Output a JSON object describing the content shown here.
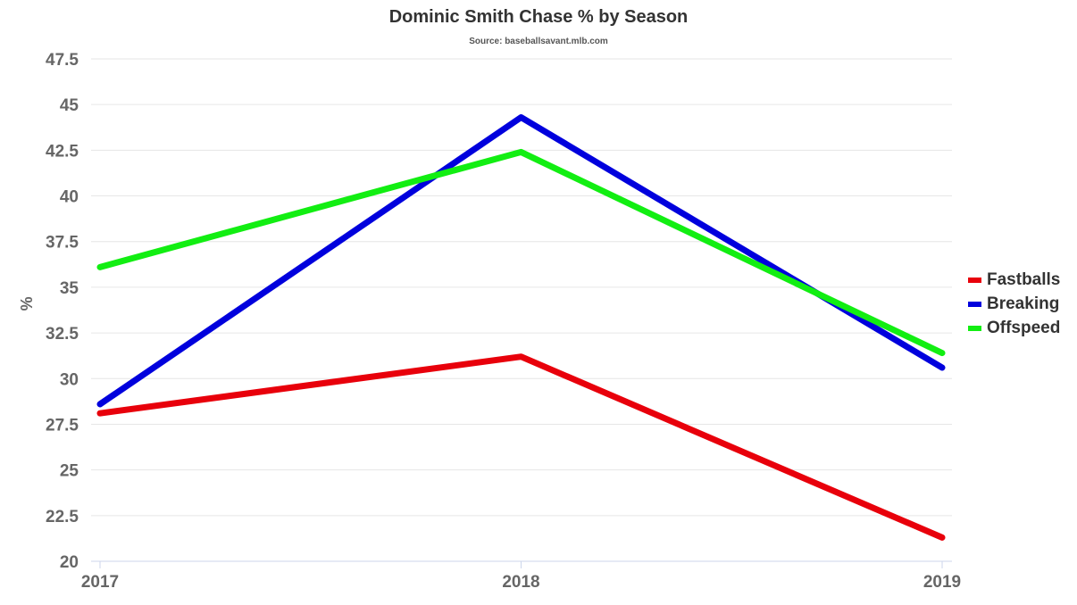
{
  "chart_data": {
    "type": "line",
    "title": "Dominic Smith Chase % by Season",
    "subtitle": "Source: baseballsavant.mlb.com",
    "xlabel": "",
    "ylabel": "%",
    "categories": [
      "2017",
      "2018",
      "2019"
    ],
    "ylim": [
      20,
      47.5
    ],
    "yticks": [
      "20",
      "22.5",
      "25",
      "27.5",
      "30",
      "32.5",
      "35",
      "37.5",
      "40",
      "42.5",
      "45",
      "47.5"
    ],
    "grid": true,
    "legend_position": "right",
    "series": [
      {
        "name": "Fastballs",
        "color": "#e8000b",
        "values": [
          28.1,
          31.2,
          21.3
        ]
      },
      {
        "name": "Breaking",
        "color": "#0000dd",
        "values": [
          28.6,
          44.3,
          30.6
        ]
      },
      {
        "name": "Offspeed",
        "color": "#12ee12",
        "values": [
          36.1,
          42.4,
          31.4
        ]
      }
    ]
  }
}
